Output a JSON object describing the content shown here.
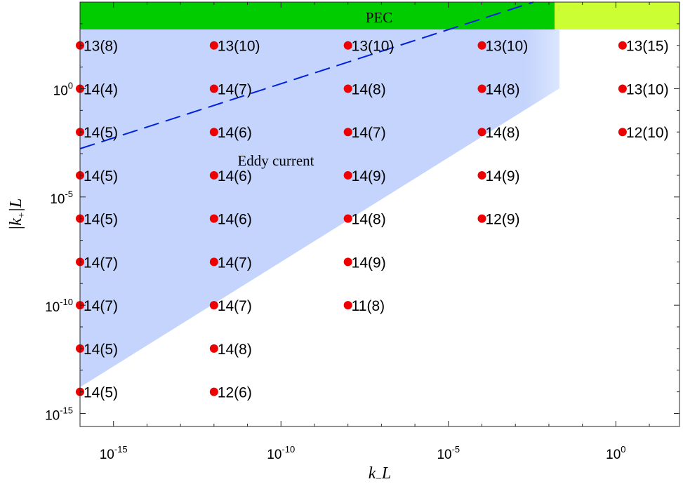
{
  "chart_data": {
    "type": "scatter",
    "xlabel": "k_L",
    "xlabel_parts": {
      "main": "k",
      "sub": "−",
      "tail": "L"
    },
    "ylabel": "|k+|L",
    "ylabel_parts": {
      "pre": "|k",
      "sub": "+",
      "tail": "|L"
    },
    "x_scale": "log",
    "y_scale": "log",
    "xlim_exp": [
      -16,
      1.9
    ],
    "ylim_exp": [
      -15.6,
      4.0
    ],
    "x_ticks": [
      {
        "mantissa": "10",
        "exp": "-15",
        "value_exp": -15
      },
      {
        "mantissa": "10",
        "exp": "-10",
        "value_exp": -10
      },
      {
        "mantissa": "10",
        "exp": "-5",
        "value_exp": -5
      },
      {
        "mantissa": "10",
        "exp": "0",
        "value_exp": 0
      }
    ],
    "y_ticks": [
      {
        "mantissa": "10",
        "exp": "0",
        "value_exp": 0
      },
      {
        "mantissa": "10",
        "exp": "-5",
        "value_exp": -5
      },
      {
        "mantissa": "10",
        "exp": "-10",
        "value_exp": -10
      },
      {
        "mantissa": "10",
        "exp": "-15",
        "value_exp": -15
      }
    ],
    "grid": false,
    "colors": {
      "pec_region": "#00cc00",
      "corner_region": "#ccff33",
      "eddy_region": "#c4d4fc",
      "dashed_line": "#0022dd",
      "points": "#ee0000"
    },
    "regions": [
      {
        "name": "PEC",
        "label": "PEC",
        "type": "band"
      },
      {
        "name": "corner",
        "label": "",
        "type": "band"
      },
      {
        "name": "eddy",
        "label": "Eddy current",
        "type": "polygon"
      }
    ],
    "points": [
      {
        "x_exp": -16,
        "y_exp": 2,
        "label": "13(8)"
      },
      {
        "x_exp": -16,
        "y_exp": 0,
        "label": "14(4)"
      },
      {
        "x_exp": -16,
        "y_exp": -2,
        "label": "14(5)"
      },
      {
        "x_exp": -16,
        "y_exp": -4,
        "label": "14(5)"
      },
      {
        "x_exp": -16,
        "y_exp": -6,
        "label": "14(5)"
      },
      {
        "x_exp": -16,
        "y_exp": -8,
        "label": "14(7)"
      },
      {
        "x_exp": -16,
        "y_exp": -10,
        "label": "14(7)"
      },
      {
        "x_exp": -16,
        "y_exp": -12,
        "label": "14(5)"
      },
      {
        "x_exp": -16,
        "y_exp": -14,
        "label": "14(5)"
      },
      {
        "x_exp": -12,
        "y_exp": 2,
        "label": "13(10)"
      },
      {
        "x_exp": -12,
        "y_exp": 0,
        "label": "14(7)"
      },
      {
        "x_exp": -12,
        "y_exp": -2,
        "label": "14(6)"
      },
      {
        "x_exp": -12,
        "y_exp": -4,
        "label": "14(6)"
      },
      {
        "x_exp": -12,
        "y_exp": -6,
        "label": "14(6)"
      },
      {
        "x_exp": -12,
        "y_exp": -8,
        "label": "14(7)"
      },
      {
        "x_exp": -12,
        "y_exp": -10,
        "label": "14(7)"
      },
      {
        "x_exp": -12,
        "y_exp": -12,
        "label": "14(8)"
      },
      {
        "x_exp": -12,
        "y_exp": -14,
        "label": "12(6)"
      },
      {
        "x_exp": -8,
        "y_exp": 2,
        "label": "13(10)"
      },
      {
        "x_exp": -8,
        "y_exp": 0,
        "label": "14(8)"
      },
      {
        "x_exp": -8,
        "y_exp": -2,
        "label": "14(7)"
      },
      {
        "x_exp": -8,
        "y_exp": -4,
        "label": "14(9)"
      },
      {
        "x_exp": -8,
        "y_exp": -6,
        "label": "14(8)"
      },
      {
        "x_exp": -8,
        "y_exp": -8,
        "label": "14(9)"
      },
      {
        "x_exp": -8,
        "y_exp": -10,
        "label": "11(8)"
      },
      {
        "x_exp": -4,
        "y_exp": 2,
        "label": "13(10)"
      },
      {
        "x_exp": -4,
        "y_exp": 0,
        "label": "14(8)"
      },
      {
        "x_exp": -4,
        "y_exp": -2,
        "label": "14(8)"
      },
      {
        "x_exp": -4,
        "y_exp": -4,
        "label": "14(9)"
      },
      {
        "x_exp": -4,
        "y_exp": -6,
        "label": "12(9)"
      },
      {
        "x_exp": 0.2,
        "y_exp": 2,
        "label": "13(15)"
      },
      {
        "x_exp": 0.2,
        "y_exp": 0,
        "label": "13(10)"
      },
      {
        "x_exp": 0.2,
        "y_exp": -2,
        "label": "12(10)"
      }
    ]
  }
}
